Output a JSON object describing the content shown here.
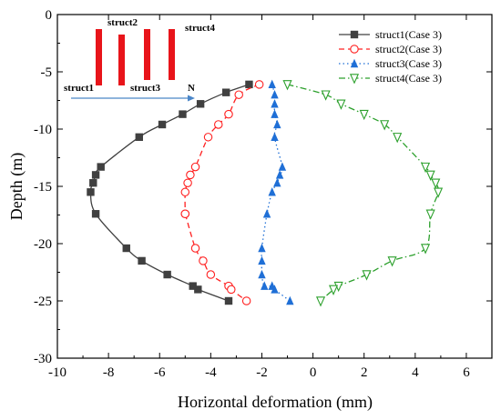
{
  "chart_data": {
    "type": "line",
    "xlabel": "Horizontal deformation (mm)",
    "ylabel": "Depth (m)",
    "xlim": [
      -10,
      7
    ],
    "ylim": [
      -30,
      0
    ],
    "xticks": [
      -10,
      -8,
      -6,
      -4,
      -2,
      0,
      2,
      4,
      6
    ],
    "yticks": [
      0,
      -5,
      -10,
      -15,
      -20,
      -25,
      -30
    ],
    "legend_position": "top-right",
    "grid": false,
    "series": [
      {
        "name": "struct1(Case 3)",
        "color": "#404040",
        "marker": "square",
        "line_style": "solid",
        "x": [
          -2.5,
          -3.4,
          -4.4,
          -5.1,
          -5.9,
          -6.8,
          -8.3,
          -8.5,
          -8.6,
          -8.7,
          -8.5,
          -7.3,
          -6.7,
          -5.7,
          -4.7,
          -4.5,
          -3.3
        ],
        "y": [
          -6.1,
          -6.8,
          -7.8,
          -8.7,
          -9.6,
          -10.7,
          -13.3,
          -14.0,
          -14.7,
          -15.5,
          -17.4,
          -20.4,
          -21.5,
          -22.7,
          -23.7,
          -24.0,
          -25.0
        ]
      },
      {
        "name": "struct2(Case 3)",
        "color": "#ff2020",
        "marker": "circle-open",
        "line_style": "dashed",
        "x": [
          -2.1,
          -2.9,
          -3.3,
          -3.7,
          -4.1,
          -4.6,
          -4.8,
          -4.9,
          -5.0,
          -5.0,
          -5.0,
          -4.6,
          -4.3,
          -4.0,
          -3.3,
          -3.2,
          -2.6
        ],
        "y": [
          -6.1,
          -7.0,
          -8.7,
          -9.6,
          -10.7,
          -13.3,
          -14.0,
          -14.7,
          -15.5,
          -17.4,
          -17.4,
          -20.4,
          -21.5,
          -22.7,
          -23.7,
          -24.0,
          -25.0
        ]
      },
      {
        "name": "struct3(Case 3)",
        "color": "#1f6fd6",
        "marker": "triangle-up",
        "line_style": "dotted",
        "x": [
          -1.6,
          -1.5,
          -1.5,
          -1.5,
          -1.4,
          -1.5,
          -1.2,
          -1.3,
          -1.4,
          -1.6,
          -1.8,
          -2.0,
          -2.0,
          -2.0,
          -1.9,
          -1.6,
          -1.5,
          -0.9
        ],
        "y": [
          -6.1,
          -7.0,
          -7.8,
          -8.7,
          -9.6,
          -10.7,
          -13.3,
          -14.0,
          -14.7,
          -15.5,
          -17.4,
          -20.4,
          -21.5,
          -22.7,
          -23.7,
          -23.7,
          -24.0,
          -25.0
        ]
      },
      {
        "name": "struct4(Case 3)",
        "color": "#2ca02c",
        "marker": "triangle-down-open",
        "line_style": "dash-dot",
        "x": [
          -1.0,
          0.5,
          1.1,
          2.0,
          2.8,
          3.3,
          4.4,
          4.6,
          4.8,
          4.9,
          4.6,
          4.4,
          3.1,
          2.1,
          1.0,
          0.8,
          0.3
        ],
        "y": [
          -6.1,
          -7.0,
          -7.8,
          -8.7,
          -9.6,
          -10.7,
          -13.3,
          -14.0,
          -14.7,
          -15.5,
          -17.4,
          -20.4,
          -21.5,
          -22.7,
          -23.7,
          -24.0,
          -25.0
        ]
      }
    ],
    "inset": {
      "labels": [
        "struct1",
        "struct2",
        "struct3",
        "struct4",
        "N"
      ],
      "bar_color": "#e8141a",
      "arrow_color": "#4a86c8"
    }
  }
}
